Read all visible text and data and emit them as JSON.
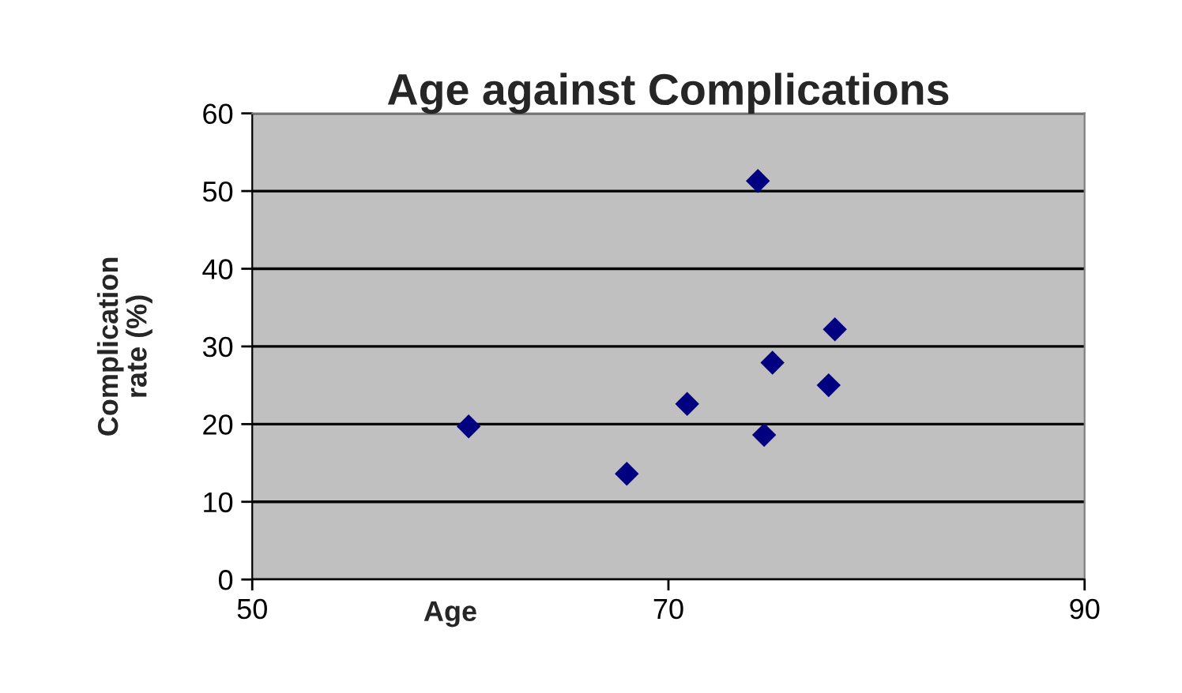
{
  "chart_data": {
    "type": "scatter",
    "title": "Age against Complications",
    "xlabel": "Age",
    "ylabel": "Complication\nrate (%)",
    "x": [
      60.4,
      68.0,
      70.9,
      74.3,
      74.6,
      75.0,
      77.7,
      78.0
    ],
    "series": [
      {
        "color": "#000080",
        "values": [
          19.7,
          13.6,
          22.6,
          51.3,
          18.6,
          27.9,
          25.0,
          32.2
        ]
      }
    ],
    "xlim": [
      50,
      90
    ],
    "xticks": [
      50,
      70,
      90
    ],
    "ylim": [
      0,
      60
    ],
    "yticks": [
      0,
      10,
      20,
      30,
      40,
      50,
      60
    ],
    "grid": "y",
    "marker": "diamond"
  }
}
